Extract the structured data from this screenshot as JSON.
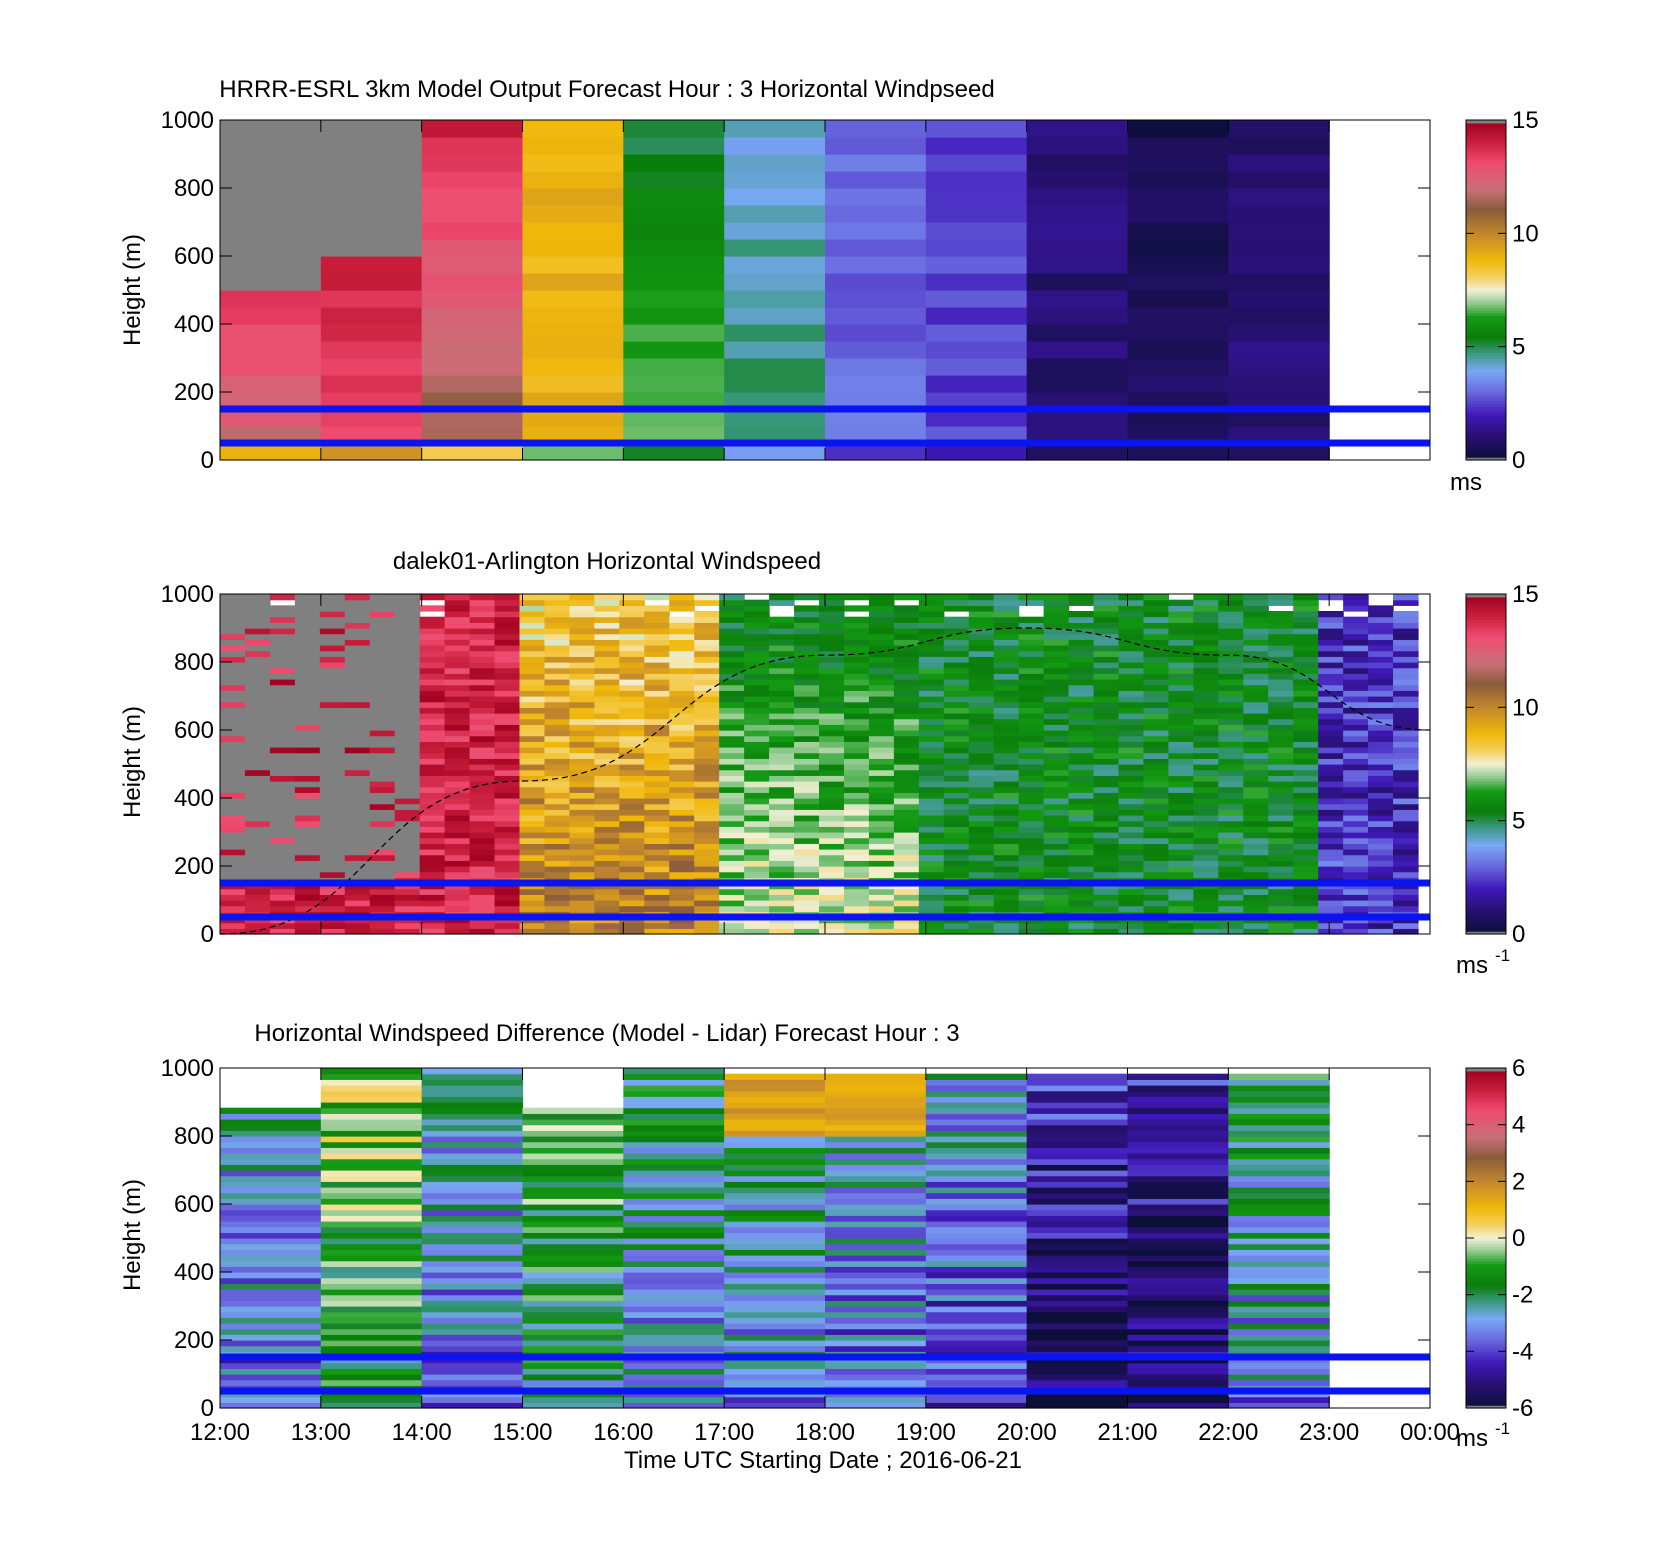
{
  "xlabel": "Time UTC  Starting Date ; 2016-06-21",
  "x_ticks": [
    "12:00",
    "13:00",
    "14:00",
    "15:00",
    "16:00",
    "17:00",
    "18:00",
    "19:00",
    "20:00",
    "21:00",
    "22:00",
    "23:00",
    "00:00"
  ],
  "colors": {
    "reference_line": "#0a14f0",
    "nodata": "#808080",
    "frame": "#000000"
  },
  "chart_data": [
    {
      "type": "heatmap",
      "title": "HRRR-ESRL 3km Model Output   Forecast Hour : 3 Horizontal Windpseed",
      "ylabel": "Height (m)",
      "y_ticks": [
        "0",
        "200",
        "400",
        "600",
        "800",
        "1000"
      ],
      "ylim": [
        0,
        1000
      ],
      "colorbar": {
        "ticks": [
          "0",
          "5",
          "10",
          "15"
        ],
        "unit": "ms",
        "range": [
          0,
          15
        ]
      },
      "reference_lines_m": [
        150,
        50
      ],
      "hour_columns_ms": [
        {
          "hour": "12:00",
          "speed_low": 12,
          "speed_high": 15
        },
        {
          "hour": "13:00",
          "speed_low": 13,
          "speed_high": 15
        },
        {
          "hour": "14:00",
          "speed_low": 11,
          "speed_high": 14
        },
        {
          "hour": "15:00",
          "speed_low": 9,
          "speed_high": 9
        },
        {
          "hour": "16:00",
          "speed_low": 7,
          "speed_high": 5
        },
        {
          "hour": "17:00",
          "speed_low": 5,
          "speed_high": 4
        },
        {
          "hour": "18:00",
          "speed_low": 3,
          "speed_high": 3
        },
        {
          "hour": "19:00",
          "speed_low": 2.5,
          "speed_high": 2.5
        },
        {
          "hour": "20:00",
          "speed_low": 1,
          "speed_high": 1
        },
        {
          "hour": "21:00",
          "speed_low": 0.8,
          "speed_high": 0.3
        },
        {
          "hour": "22:00",
          "speed_low": 1,
          "speed_high": 1
        }
      ]
    },
    {
      "type": "heatmap",
      "title": "dalek01-Arlington  Horizontal Windspeed",
      "ylabel": "Height (m)",
      "y_ticks": [
        "0",
        "200",
        "400",
        "600",
        "800",
        "1000"
      ],
      "ylim": [
        0,
        1000
      ],
      "colorbar": {
        "ticks": [
          "0",
          "5",
          "10",
          "15"
        ],
        "unit": "ms",
        "unit_exp": "-1",
        "range": [
          0,
          15
        ]
      },
      "reference_lines_m": [
        150,
        50
      ],
      "mixing_height_curve_m": [
        {
          "hour": "12:00",
          "height": 0
        },
        {
          "hour": "15:00",
          "height": 450
        },
        {
          "hour": "18:00",
          "height": 820
        },
        {
          "hour": "20:00",
          "height": 900
        },
        {
          "hour": "22:00",
          "height": 820
        },
        {
          "hour": "00:00",
          "height": 600
        }
      ]
    },
    {
      "type": "heatmap",
      "title": "Horizontal Windspeed Difference (Model - Lidar) Forecast Hour : 3",
      "ylabel": "Height (m)",
      "y_ticks": [
        "0",
        "200",
        "400",
        "600",
        "800",
        "1000"
      ],
      "ylim": [
        0,
        1000
      ],
      "colorbar": {
        "ticks": [
          "-6",
          "-4",
          "-2",
          "0",
          "2",
          "4",
          "6"
        ],
        "unit": "ms",
        "unit_exp": "-1",
        "range": [
          -6,
          6
        ]
      },
      "reference_lines_m": [
        150,
        50
      ],
      "hour_columns_diff_ms": [
        {
          "hour": "12:00",
          "diff": -3
        },
        {
          "hour": "13:00",
          "diff": -1
        },
        {
          "hour": "14:00",
          "diff": -3
        },
        {
          "hour": "15:00",
          "diff": -1.5
        },
        {
          "hour": "16:00",
          "diff": -2.5
        },
        {
          "hour": "17:00",
          "diff": -2.5
        },
        {
          "hour": "18:00",
          "diff": -3
        },
        {
          "hour": "19:00",
          "diff": -3.5
        },
        {
          "hour": "20:00",
          "diff": -5
        },
        {
          "hour": "21:00",
          "diff": -5
        },
        {
          "hour": "22:00",
          "diff": -2.5
        }
      ]
    }
  ]
}
